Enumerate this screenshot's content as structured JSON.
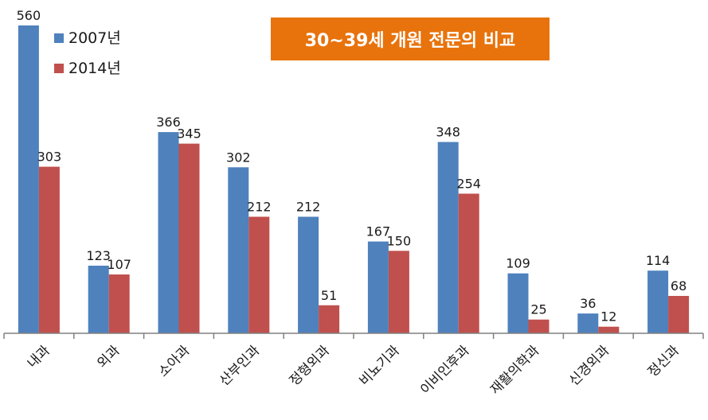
{
  "chart_data": {
    "type": "bar",
    "title": "30~39세 개원 전문의 비교",
    "categories": [
      "내과",
      "외과",
      "소아과",
      "산부인과",
      "정형외과",
      "비뇨기과",
      "이비인후과",
      "재활의학과",
      "신경외과",
      "정신과"
    ],
    "series": [
      {
        "name": "2007년",
        "color": "#4f81bd",
        "values": [
          560,
          123,
          366,
          302,
          212,
          167,
          348,
          109,
          36,
          114
        ]
      },
      {
        "name": "2014년",
        "color": "#c0504d",
        "values": [
          303,
          107,
          345,
          212,
          51,
          150,
          254,
          25,
          12,
          68
        ]
      }
    ],
    "ylim": [
      0,
      560
    ],
    "legend_position": "top-left",
    "grid": false
  }
}
